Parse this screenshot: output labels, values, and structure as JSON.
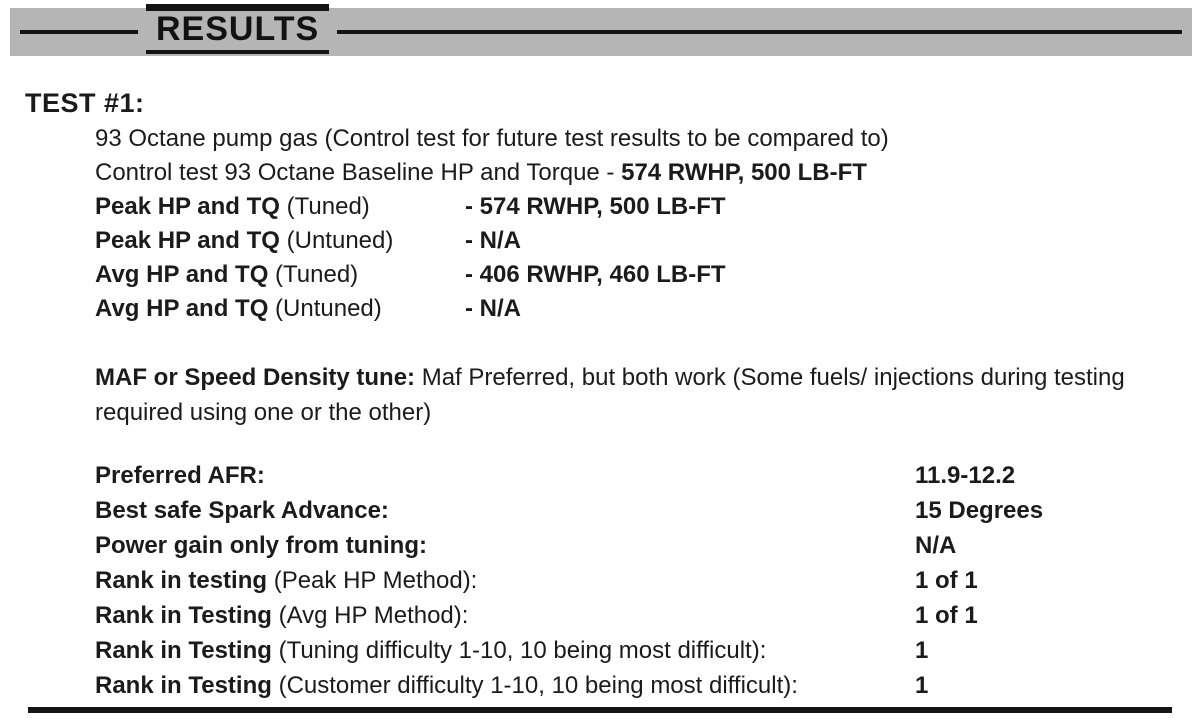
{
  "banner": {
    "title": "RESULTS"
  },
  "test": {
    "heading": "TEST #1:",
    "intro_line": "93 Octane pump gas (Control test for  future  test results to be compared to)",
    "baseline_label": "Control test 93 Octane Baseline HP and Torque - ",
    "baseline_value": "574 RWHP, 500 LB-FT",
    "dyno_rows": [
      {
        "label_bold": "Peak HP and TQ",
        "label_rest": " (Tuned)",
        "value": "- 574 RWHP, 500 LB-FT"
      },
      {
        "label_bold": "Peak HP and TQ",
        "label_rest": " (Untuned)",
        "value": "- N/A"
      },
      {
        "label_bold": "Avg HP and TQ",
        "label_rest": " (Tuned)",
        "value": "- 406 RWHP, 460 LB-FT"
      },
      {
        "label_bold": "Avg HP and TQ",
        "label_rest": " (Untuned)",
        "value": "- N/A"
      }
    ],
    "maf_note_bold": "MAF or Speed Density tune:",
    "maf_note_rest": " Maf Preferred, but both work (Some fuels/ injections during testing required using one or the other)",
    "spec_rows": [
      {
        "label_bold": "Preferred AFR:",
        "label_rest": "",
        "value": "11.9-12.2"
      },
      {
        "label_bold": "Best safe Spark Advance:",
        "label_rest": "",
        "value": "15 Degrees"
      },
      {
        "label_bold": "Power gain only from tuning:",
        "label_rest": "",
        "value": "N/A"
      },
      {
        "label_bold": "Rank in testing",
        "label_rest": " (Peak HP Method):",
        "value": "1 of 1"
      },
      {
        "label_bold": "Rank in Testing",
        "label_rest": " (Avg HP Method):",
        "value": "1 of 1"
      },
      {
        "label_bold": "Rank in Testing",
        "label_rest": " (Tuning difficulty 1-10, 10 being most difficult):",
        "value": "1"
      },
      {
        "label_bold": "Rank in Testing",
        "label_rest": " (Customer difficulty 1-10, 10 being most difficult):",
        "value": "1"
      }
    ]
  },
  "colors": {
    "banner_bg": "#b5b5b5",
    "rule": "#141414",
    "text": "#1b1b1b"
  }
}
